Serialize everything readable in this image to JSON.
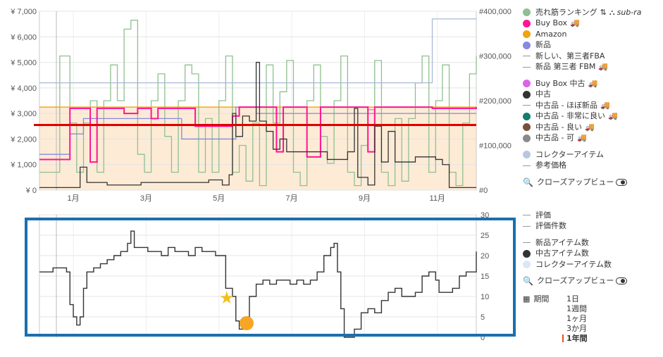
{
  "chart_data": [
    {
      "type": "line",
      "x_axis": {
        "ticks": [
          "1月",
          "3月",
          "5月",
          "7月",
          "9月",
          "11月"
        ]
      },
      "y_left": {
        "ticks": [
          "¥ 0",
          "¥ 1,000",
          "¥ 2,000",
          "¥ 3,000",
          "¥ 4,000",
          "¥ 5,000",
          "¥ 6,000",
          "¥ 7,000"
        ],
        "range": [
          0,
          7000
        ]
      },
      "y_right": {
        "ticks": [
          "#0",
          "#100,000",
          "#200,000",
          "#300,000",
          "#400,000"
        ],
        "range": [
          0,
          400000
        ]
      },
      "grid": true,
      "annotations": [
        {
          "kind": "horizontal-line",
          "color": "#e00000",
          "y": 2550
        }
      ],
      "series": [
        {
          "name": "売れ筋ランキング",
          "axis": "right",
          "color": "#8fc08f",
          "points": [
            [
              0,
              40000
            ],
            [
              5,
              40000
            ],
            [
              6,
              300000
            ],
            [
              8,
              300000
            ],
            [
              9,
              150000
            ],
            [
              11,
              40000
            ],
            [
              13,
              150000
            ],
            [
              15,
              200000
            ],
            [
              17,
              40000
            ],
            [
              19,
              200000
            ],
            [
              21,
              280000
            ],
            [
              23,
              200000
            ],
            [
              25,
              360000
            ],
            [
              27,
              380000
            ],
            [
              29,
              80000
            ],
            [
              31,
              40000
            ],
            [
              33,
              200000
            ],
            [
              35,
              260000
            ],
            [
              37,
              120000
            ],
            [
              39,
              40000
            ],
            [
              41,
              200000
            ],
            [
              43,
              280000
            ],
            [
              45,
              260000
            ],
            [
              47,
              40000
            ],
            [
              49,
              160000
            ],
            [
              51,
              40000
            ],
            [
              53,
              200000
            ],
            [
              55,
              300000
            ],
            [
              57,
              40000
            ],
            [
              59,
              100000
            ],
            [
              61,
              20000
            ],
            [
              63,
              150000
            ],
            [
              65,
              10000
            ],
            [
              67,
              280000
            ],
            [
              69,
              150000
            ],
            [
              71,
              220000
            ],
            [
              73,
              290000
            ],
            [
              75,
              40000
            ],
            [
              77,
              10000
            ],
            [
              79,
              200000
            ],
            [
              81,
              280000
            ],
            [
              83,
              120000
            ],
            [
              85,
              60000
            ],
            [
              87,
              200000
            ],
            [
              89,
              300000
            ],
            [
              91,
              40000
            ],
            [
              93,
              10000
            ],
            [
              95,
              100000
            ],
            [
              97,
              180000
            ],
            [
              99,
              290000
            ],
            [
              101,
              40000
            ],
            [
              103,
              10000
            ],
            [
              105,
              160000
            ],
            [
              107,
              20000
            ],
            [
              109,
              160000
            ],
            [
              111,
              240000
            ],
            [
              113,
              300000
            ],
            [
              115,
              40000
            ],
            [
              117,
              200000
            ],
            [
              119,
              280000
            ],
            [
              121,
              40000
            ],
            [
              123,
              10000
            ],
            [
              125,
              150000
            ],
            [
              127,
              260000
            ],
            [
              129,
              300000
            ]
          ]
        },
        {
          "name": "Buy Box",
          "axis": "left",
          "color": "#ff1493",
          "points": [
            [
              0,
              1200
            ],
            [
              8,
              1200
            ],
            [
              9,
              3200
            ],
            [
              14,
              3200
            ],
            [
              15,
              1100
            ],
            [
              17,
              3200
            ],
            [
              24,
              3200
            ],
            [
              25,
              3000
            ],
            [
              29,
              3200
            ],
            [
              33,
              2800
            ],
            [
              35,
              3200
            ],
            [
              45,
              3200
            ],
            [
              46,
              2500
            ],
            [
              56,
              2500
            ],
            [
              57,
              2900
            ],
            [
              59,
              3250
            ],
            [
              69,
              3250
            ],
            [
              70,
              1500
            ],
            [
              72,
              3250
            ],
            [
              78,
              3250
            ],
            [
              79,
              1300
            ],
            [
              83,
              3250
            ],
            [
              93,
              3250
            ],
            [
              97,
              1500
            ],
            [
              99,
              3250
            ],
            [
              115,
              3250
            ],
            [
              116,
              3200
            ],
            [
              129,
              3250
            ]
          ]
        },
        {
          "name": "Amazon",
          "axis": "left",
          "color": "#f0a30a",
          "points": [
            [
              0,
              3250
            ],
            [
              129,
              3250
            ]
          ]
        },
        {
          "name": "新品",
          "axis": "left",
          "color": "#8888dd",
          "points": [
            [
              0,
              1400
            ],
            [
              8,
              1400
            ],
            [
              9,
              2200
            ],
            [
              11,
              2200
            ],
            [
              13,
              2800
            ],
            [
              40,
              2800
            ],
            [
              42,
              2000
            ],
            [
              56,
              2000
            ],
            [
              58,
              3250
            ],
            [
              62,
              3250
            ],
            [
              64,
              3000
            ],
            [
              129,
              3000
            ]
          ]
        },
        {
          "name": "中古",
          "axis": "left",
          "color": "#333333",
          "points": [
            [
              0,
              100
            ],
            [
              10,
              100
            ],
            [
              12,
              900
            ],
            [
              14,
              300
            ],
            [
              20,
              200
            ],
            [
              30,
              300
            ],
            [
              40,
              300
            ],
            [
              50,
              400
            ],
            [
              54,
              200
            ],
            [
              56,
              600
            ],
            [
              57,
              3000
            ],
            [
              58,
              2100
            ],
            [
              60,
              2900
            ],
            [
              62,
              2700
            ],
            [
              64,
              5000
            ],
            [
              65,
              2700
            ],
            [
              67,
              2300
            ],
            [
              69,
              1600
            ],
            [
              71,
              2000
            ],
            [
              73,
              1500
            ],
            [
              79,
              1500
            ],
            [
              85,
              1200
            ],
            [
              91,
              1500
            ],
            [
              93,
              3200
            ],
            [
              94,
              500
            ],
            [
              97,
              200
            ],
            [
              99,
              2500
            ],
            [
              101,
              1100
            ],
            [
              103,
              2300
            ],
            [
              105,
              1100
            ],
            [
              111,
              1300
            ],
            [
              117,
              1200
            ],
            [
              119,
              1000
            ],
            [
              121,
              100
            ],
            [
              129,
              100
            ]
          ]
        },
        {
          "name": "参考価格",
          "axis": "left",
          "color": "#aab8d8",
          "points": [
            [
              0,
              4200
            ],
            [
              5,
              4200
            ],
            [
              40,
              4200
            ],
            [
              46,
              4200
            ],
            [
              76,
              4200
            ],
            [
              78,
              4200
            ],
            [
              116,
              6700
            ],
            [
              129,
              6700
            ]
          ]
        }
      ]
    },
    {
      "type": "line",
      "y_axis": {
        "ticks": [
          "0",
          "5",
          "10",
          "15",
          "20",
          "25",
          "30"
        ],
        "range": [
          0,
          30
        ]
      },
      "grid": true,
      "series": [
        {
          "name": "中古アイテム数",
          "color": "#333333",
          "points": [
            [
              0,
              16
            ],
            [
              4,
              17
            ],
            [
              8,
              16
            ],
            [
              9,
              8
            ],
            [
              10,
              5
            ],
            [
              11,
              3
            ],
            [
              12,
              5
            ],
            [
              13,
              12
            ],
            [
              14,
              16
            ],
            [
              16,
              17
            ],
            [
              18,
              18
            ],
            [
              20,
              19
            ],
            [
              22,
              20
            ],
            [
              24,
              21
            ],
            [
              26,
              23
            ],
            [
              27,
              26
            ],
            [
              28,
              22
            ],
            [
              30,
              22
            ],
            [
              32,
              21
            ],
            [
              34,
              21
            ],
            [
              36,
              20
            ],
            [
              38,
              22
            ],
            [
              40,
              21
            ],
            [
              42,
              21
            ],
            [
              44,
              20
            ],
            [
              46,
              22
            ],
            [
              48,
              21
            ],
            [
              50,
              21
            ],
            [
              52,
              20
            ],
            [
              54,
              20
            ],
            [
              55,
              12
            ],
            [
              57,
              10
            ],
            [
              58,
              4
            ],
            [
              59,
              2
            ],
            [
              60,
              2
            ],
            [
              61,
              5
            ],
            [
              62,
              10
            ],
            [
              64,
              13
            ],
            [
              66,
              14
            ],
            [
              68,
              13
            ],
            [
              70,
              14
            ],
            [
              72,
              14
            ],
            [
              74,
              13
            ],
            [
              76,
              14
            ],
            [
              78,
              13
            ],
            [
              80,
              14
            ],
            [
              82,
              16
            ],
            [
              84,
              20
            ],
            [
              86,
              22
            ],
            [
              87,
              23
            ],
            [
              88,
              16
            ],
            [
              89,
              7
            ],
            [
              90,
              0
            ],
            [
              92,
              0
            ],
            [
              93,
              2
            ],
            [
              95,
              6
            ],
            [
              97,
              7
            ],
            [
              99,
              6
            ],
            [
              101,
              9
            ],
            [
              103,
              11
            ],
            [
              105,
              12
            ],
            [
              107,
              10
            ],
            [
              109,
              10
            ],
            [
              111,
              11
            ],
            [
              113,
              15
            ],
            [
              115,
              16
            ],
            [
              117,
              14
            ],
            [
              118,
              11
            ],
            [
              120,
              11
            ],
            [
              122,
              12
            ],
            [
              124,
              15
            ],
            [
              126,
              16
            ],
            [
              128,
              16
            ],
            [
              129,
              21
            ]
          ]
        }
      ]
    }
  ],
  "legend_top": [
    {
      "label": "売れ筋ランキング",
      "marker": "dot",
      "color": "#8fc08f",
      "extra": "sub-ra",
      "icons": [
        "sort-icon",
        "hierarchy-icon"
      ]
    },
    {
      "label": "Buy Box",
      "marker": "dot",
      "color": "#ff1493",
      "truck": true
    },
    {
      "label": "Amazon",
      "marker": "dot",
      "color": "#f0a30a"
    },
    {
      "label": "新品",
      "marker": "dot",
      "color": "#8888dd"
    },
    {
      "label": "新しい、第三者FBA",
      "marker": "dash",
      "color": "#999999"
    },
    {
      "label": "新品 第三者 FBM",
      "marker": "dash",
      "color": "#999999",
      "truck": true
    },
    {
      "label": "",
      "marker": "spacer"
    },
    {
      "label": "Buy Box 中古",
      "marker": "dot",
      "color": "#d966e8",
      "truck": true
    },
    {
      "label": "中古",
      "marker": "dot",
      "color": "#333333"
    },
    {
      "label": "中古品 - ほぼ新品",
      "marker": "dash",
      "color": "#999999",
      "truck": true
    },
    {
      "label": "中古品 - 非常に良い",
      "marker": "dot",
      "color": "#12806a",
      "truck": true
    },
    {
      "label": "中古品 - 良い",
      "marker": "dot",
      "color": "#7a4e3a",
      "truck": true
    },
    {
      "label": "中古品 - 可",
      "marker": "dot",
      "color": "#8a8a8a",
      "truck": true
    },
    {
      "label": "",
      "marker": "spacer"
    },
    {
      "label": "コレクターアイテム",
      "marker": "dot",
      "color": "#b8c6e2"
    },
    {
      "label": "参考価格",
      "marker": "dash",
      "color": "#999999"
    },
    {
      "label": "",
      "marker": "spacer"
    },
    {
      "label": "クローズアップビュー",
      "marker": "search",
      "toggle": true
    }
  ],
  "legend_bottom": [
    {
      "label": "評価",
      "marker": "dash",
      "color": "#999999"
    },
    {
      "label": "評価件数",
      "marker": "dash",
      "color": "#999999"
    },
    {
      "label": "",
      "marker": "spacer"
    },
    {
      "label": "新品アイテム数",
      "marker": "dash",
      "color": "#999999"
    },
    {
      "label": "中古アイテム数",
      "marker": "dot",
      "color": "#333333"
    },
    {
      "label": "コレクターアイテム数",
      "marker": "dot",
      "color": "#dde6f5"
    },
    {
      "label": "",
      "marker": "spacer"
    },
    {
      "label": "クローズアップビュー",
      "marker": "search",
      "toggle": true
    }
  ],
  "period": {
    "label": "期間",
    "options": [
      "1日",
      "1週間",
      "1ヶ月",
      "3か月",
      "1年間"
    ],
    "selected": "1年間"
  },
  "colors": {
    "highlight_box": "#1b6fae",
    "price_band": "#fdebd6",
    "red_line": "#e00000"
  }
}
